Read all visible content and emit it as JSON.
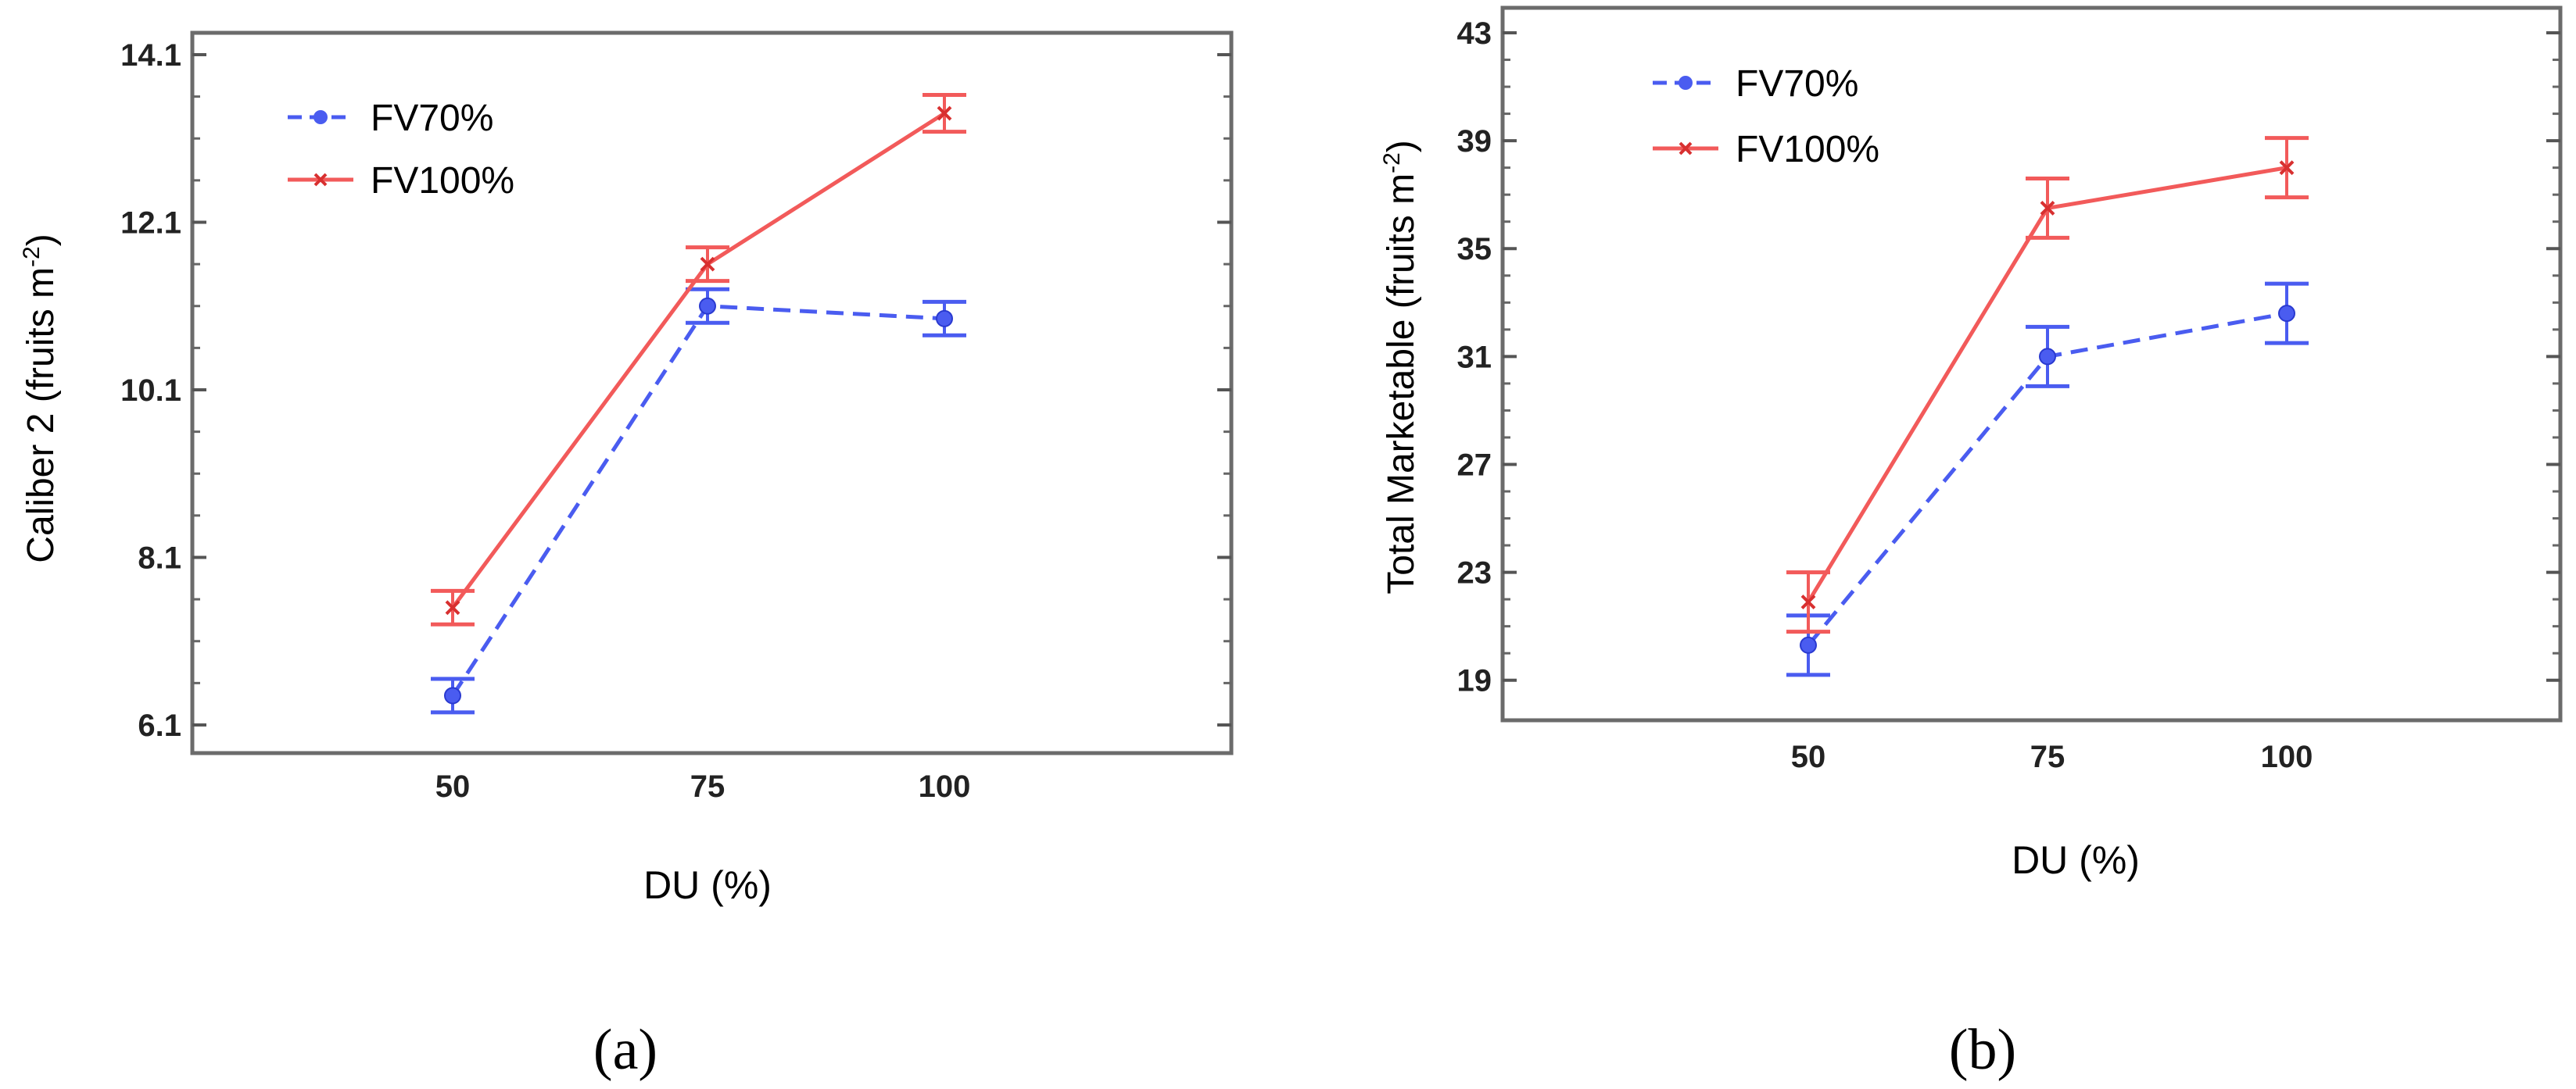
{
  "chart_data": [
    {
      "type": "line",
      "panel_label": "(a)",
      "title": "",
      "xlabel": "DU (%)",
      "ylabel": "Caliber 2 (fruits m",
      "ylabel_sup": "-2",
      "ylabel_close": ")",
      "categories": [
        "50",
        "75",
        "100"
      ],
      "yticks": [
        "6.1",
        "8.1",
        "10.1",
        "12.1",
        "14.1"
      ],
      "ylim": [
        6.1,
        14.1
      ],
      "legend_position": "top-left",
      "series": [
        {
          "name": "FV70%",
          "color": "#4a5cf0",
          "style": "dashed",
          "marker": "circle",
          "values": [
            6.45,
            11.1,
            10.95
          ],
          "error": [
            0.2,
            0.2,
            0.2
          ]
        },
        {
          "name": "FV100%",
          "color": "#f25a5a",
          "style": "solid",
          "marker": "cross",
          "values": [
            7.5,
            11.6,
            13.4
          ],
          "error": [
            0.2,
            0.2,
            0.22
          ]
        }
      ]
    },
    {
      "type": "line",
      "panel_label": "(b)",
      "title": "",
      "xlabel": "DU (%)",
      "ylabel": "Total Marketable (fruits m",
      "ylabel_sup": "-2",
      "ylabel_close": ")",
      "categories": [
        "50",
        "75",
        "100"
      ],
      "yticks": [
        "19",
        "23",
        "27",
        "31",
        "35",
        "39",
        "43"
      ],
      "ylim": [
        18.5,
        43
      ],
      "legend_position": "top-left",
      "series": [
        {
          "name": "FV70%",
          "color": "#4a5cf0",
          "style": "dashed",
          "marker": "circle",
          "values": [
            20.3,
            31.0,
            32.6
          ],
          "error": [
            1.1,
            1.1,
            1.1
          ]
        },
        {
          "name": "FV100%",
          "color": "#f25a5a",
          "style": "solid",
          "marker": "cross",
          "values": [
            21.9,
            36.5,
            38.0
          ],
          "error": [
            1.1,
            1.1,
            1.1
          ]
        }
      ]
    }
  ]
}
